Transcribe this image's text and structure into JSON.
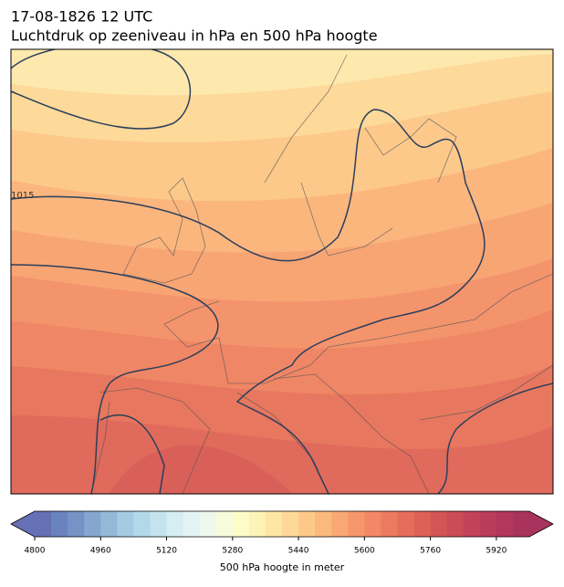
{
  "map": {
    "title_line1": "17-08-1826 12 UTC",
    "title_line2": "Luchtdruk op zeeniveau in hPa en 500 hPa hoogte",
    "contour_labels": [
      "1015"
    ],
    "colorbar": {
      "label": "500 hPa hoogte in meter",
      "range": [
        4800,
        6000
      ],
      "ticks": [
        4800,
        4960,
        5120,
        5280,
        5440,
        5600,
        5760,
        5920
      ],
      "colors": [
        "#6670b4",
        "#6a82bd",
        "#7593c6",
        "#85a6cf",
        "#93b9d8",
        "#a3cbe1",
        "#b2d9e8",
        "#c3e3ee",
        "#d4eef4",
        "#e4f4f5",
        "#eef8ec",
        "#f6fbdc",
        "#fdfcc9",
        "#fef3b6",
        "#fee6a6",
        "#fdd898",
        "#fdc98a",
        "#fcb97e",
        "#f9a874",
        "#f6976b",
        "#f28865",
        "#ec7a5f",
        "#e56d5b",
        "#dd6157",
        "#d45556",
        "#cb4b57",
        "#c24359",
        "#b93d5b",
        "#b1385c",
        "#a9335c"
      ]
    }
  }
}
